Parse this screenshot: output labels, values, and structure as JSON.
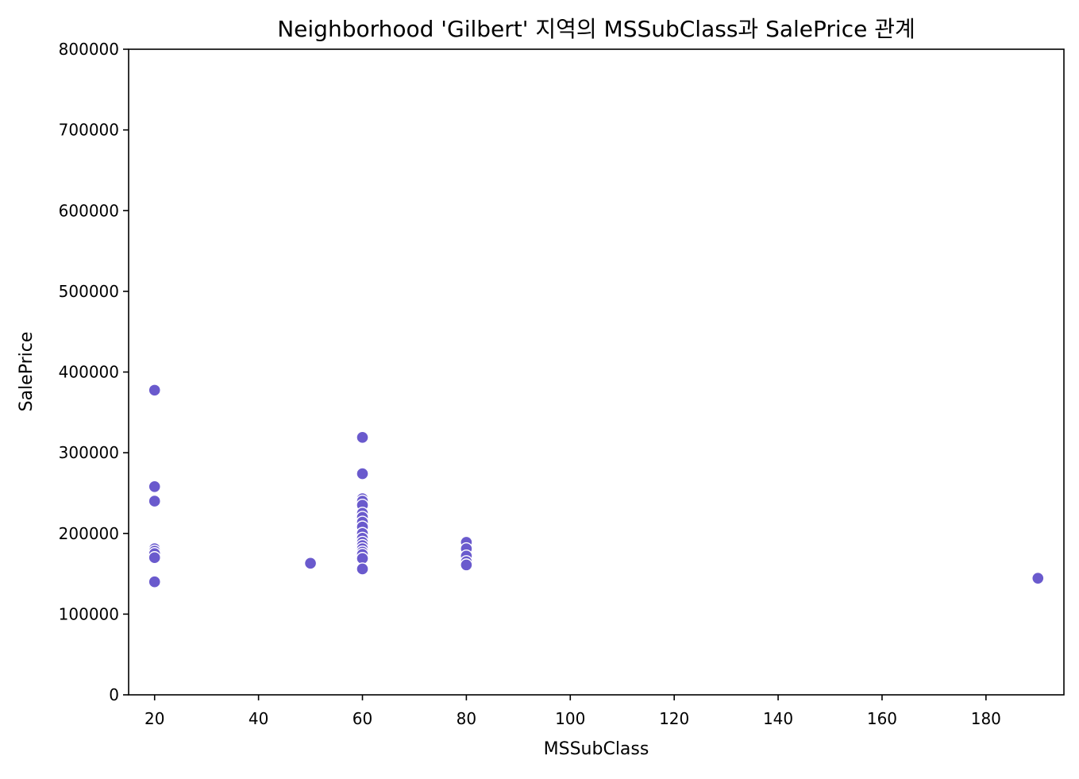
{
  "chart_data": {
    "type": "scatter",
    "title": "Neighborhood 'Gilbert' 지역의 MSSubClass과 SalePrice 관계",
    "xlabel": "MSSubClass",
    "ylabel": "SalePrice",
    "xlim": [
      15,
      195
    ],
    "ylim": [
      0,
      800000
    ],
    "x_ticks": [
      20,
      40,
      60,
      80,
      100,
      120,
      140,
      160,
      180
    ],
    "y_ticks": [
      0,
      100000,
      200000,
      300000,
      400000,
      500000,
      600000,
      700000,
      800000
    ],
    "grid": false,
    "legend": "none",
    "marker_color": "#6a5acd",
    "marker_edge_color": "#ffffff",
    "points": [
      {
        "x": 20,
        "y": 377500
      },
      {
        "x": 20,
        "y": 258000
      },
      {
        "x": 20,
        "y": 240000
      },
      {
        "x": 20,
        "y": 181000
      },
      {
        "x": 20,
        "y": 178000
      },
      {
        "x": 20,
        "y": 175000
      },
      {
        "x": 20,
        "y": 170000
      },
      {
        "x": 20,
        "y": 140000
      },
      {
        "x": 50,
        "y": 163000
      },
      {
        "x": 60,
        "y": 319000
      },
      {
        "x": 60,
        "y": 274000
      },
      {
        "x": 60,
        "y": 243000
      },
      {
        "x": 60,
        "y": 240000
      },
      {
        "x": 60,
        "y": 235000
      },
      {
        "x": 60,
        "y": 225000
      },
      {
        "x": 60,
        "y": 220000
      },
      {
        "x": 60,
        "y": 214000
      },
      {
        "x": 60,
        "y": 208000
      },
      {
        "x": 60,
        "y": 200000
      },
      {
        "x": 60,
        "y": 194000
      },
      {
        "x": 60,
        "y": 189000
      },
      {
        "x": 60,
        "y": 185000
      },
      {
        "x": 60,
        "y": 181000
      },
      {
        "x": 60,
        "y": 177000
      },
      {
        "x": 60,
        "y": 174000
      },
      {
        "x": 60,
        "y": 169000
      },
      {
        "x": 60,
        "y": 156000
      },
      {
        "x": 80,
        "y": 189000
      },
      {
        "x": 80,
        "y": 181000
      },
      {
        "x": 80,
        "y": 172000
      },
      {
        "x": 80,
        "y": 165000
      },
      {
        "x": 80,
        "y": 161000
      },
      {
        "x": 190,
        "y": 144500
      }
    ]
  }
}
